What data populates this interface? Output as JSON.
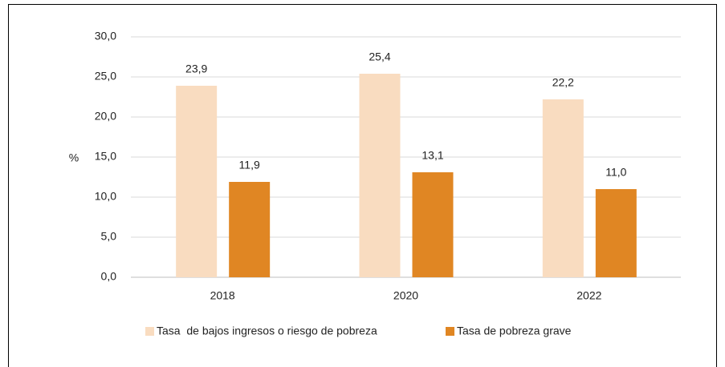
{
  "chart_data": {
    "type": "bar",
    "y_label": "%",
    "categories": [
      "2018",
      "2020",
      "2022"
    ],
    "series": [
      {
        "name": "Tasa  de bajos ingresos o riesgo de pobreza",
        "color": "#f9dcc0",
        "values": [
          23.9,
          25.4,
          22.2
        ],
        "value_labels": [
          "23,9",
          "25,4",
          "22,2"
        ]
      },
      {
        "name": "Tasa de pobreza grave",
        "color": "#e08623",
        "values": [
          11.9,
          13.1,
          11.0
        ],
        "value_labels": [
          "11,9",
          "13,1",
          "11,0"
        ]
      }
    ],
    "ylim": [
      0,
      30
    ],
    "yticks": [
      {
        "value": 0,
        "label": "0,0"
      },
      {
        "value": 5,
        "label": "5,0"
      },
      {
        "value": 10,
        "label": "10,0"
      },
      {
        "value": 15,
        "label": "15,0"
      },
      {
        "value": 20,
        "label": "20,0"
      },
      {
        "value": 25,
        "label": "25,0"
      },
      {
        "value": 30,
        "label": "30,0"
      }
    ],
    "grid": true,
    "legend": "bottom"
  }
}
